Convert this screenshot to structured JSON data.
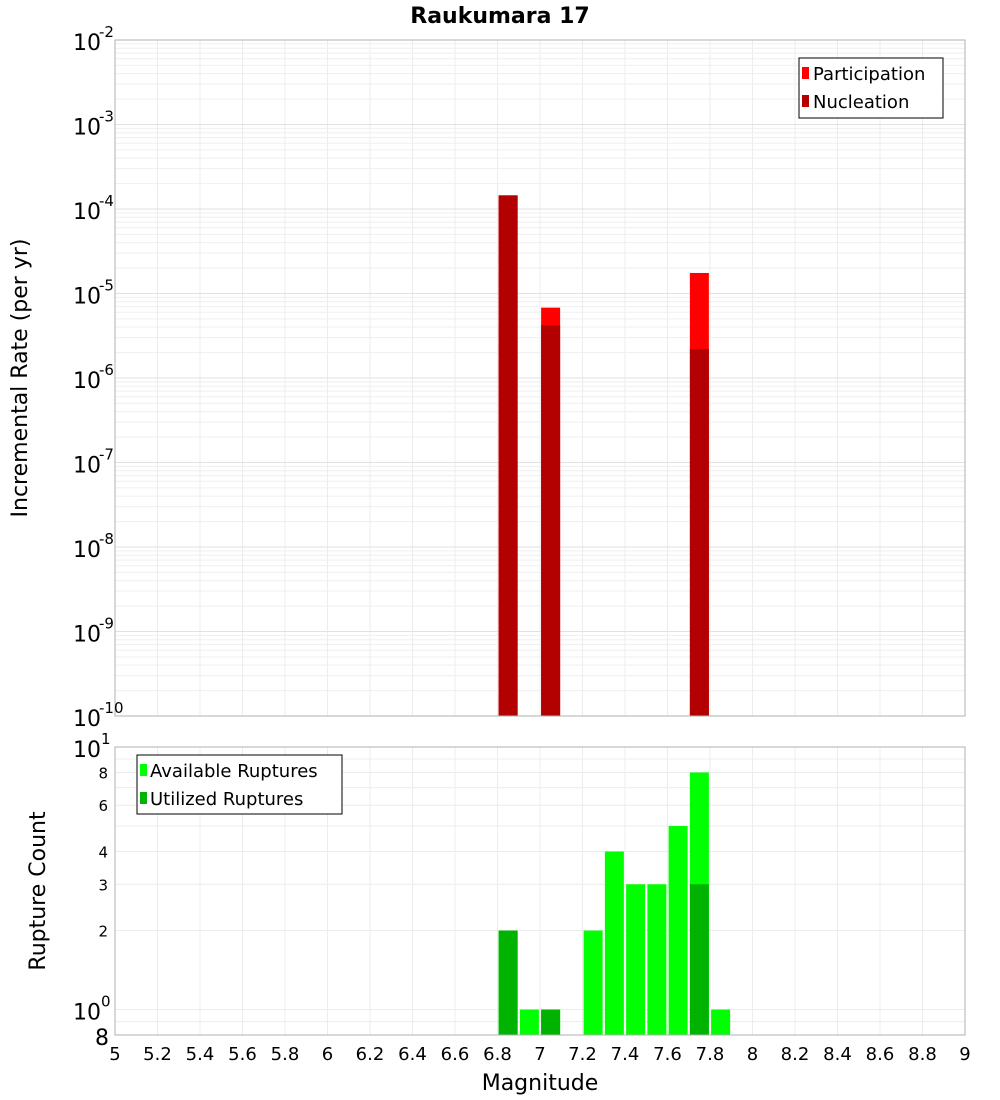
{
  "chart_data": [
    {
      "type": "bar",
      "title": "Raukumara 17",
      "xlabel": "",
      "ylabel": "Incremental Rate (per yr)",
      "xlim": [
        5,
        9
      ],
      "ylim": [
        1e-10,
        0.01
      ],
      "yscale": "log",
      "bar_mode": "overlay",
      "grid": true,
      "legend_position": "top-right",
      "y_tick_labels": [
        {
          "base": "10",
          "exp": "-10",
          "value": 1e-10
        },
        {
          "base": "10",
          "exp": "-9",
          "value": 1e-09
        },
        {
          "base": "10",
          "exp": "-8",
          "value": 1e-08
        },
        {
          "base": "10",
          "exp": "-7",
          "value": 1e-07
        },
        {
          "base": "10",
          "exp": "-6",
          "value": 1e-06
        },
        {
          "base": "10",
          "exp": "-5",
          "value": 1e-05
        },
        {
          "base": "10",
          "exp": "-4",
          "value": 0.0001
        },
        {
          "base": "10",
          "exp": "-3",
          "value": 0.001
        },
        {
          "base": "10",
          "exp": "-2",
          "value": 0.01
        }
      ],
      "series": [
        {
          "name": "Participation",
          "color": "#ff0000",
          "x": [
            6.85,
            7.05,
            7.75
          ],
          "values": [
            0.000145,
            6.8e-06,
            1.75e-05
          ]
        },
        {
          "name": "Nucleation",
          "color": "#b30000",
          "x": [
            6.85,
            7.05,
            7.75
          ],
          "values": [
            0.000145,
            4.2e-06,
            2.2e-06
          ]
        }
      ]
    },
    {
      "type": "bar",
      "title": "",
      "xlabel": "Magnitude",
      "ylabel": "Rupture Count",
      "xlim": [
        5,
        9
      ],
      "ylim": [
        0.8,
        10
      ],
      "yscale": "log",
      "bar_mode": "overlay",
      "grid": true,
      "legend_position": "top-left",
      "x_ticks": [
        "5",
        "5.2",
        "5.4",
        "5.6",
        "5.8",
        "6",
        "6.2",
        "6.4",
        "6.6",
        "6.8",
        "7",
        "7.2",
        "7.4",
        "7.6",
        "7.8",
        "8",
        "8.2",
        "8.4",
        "8.6",
        "8.8",
        "9"
      ],
      "y_ticks_small": [
        "2",
        "3",
        "4",
        "6",
        "8"
      ],
      "y_ticks_major": [
        {
          "base": "10",
          "exp": "0",
          "value": 1
        },
        {
          "base": "10",
          "exp": "1",
          "value": 10
        }
      ],
      "y_bottom_label": "8",
      "series": [
        {
          "name": "Available Ruptures",
          "color": "#00ff00",
          "x": [
            6.85,
            6.95,
            7.05,
            7.25,
            7.35,
            7.45,
            7.55,
            7.65,
            7.75,
            7.85
          ],
          "values": [
            2,
            1,
            1,
            2,
            4,
            3,
            3,
            5,
            8,
            1
          ]
        },
        {
          "name": "Utilized Ruptures",
          "color": "#00b300",
          "x": [
            6.85,
            7.05,
            7.75
          ],
          "values": [
            2,
            1,
            3
          ]
        }
      ]
    }
  ]
}
